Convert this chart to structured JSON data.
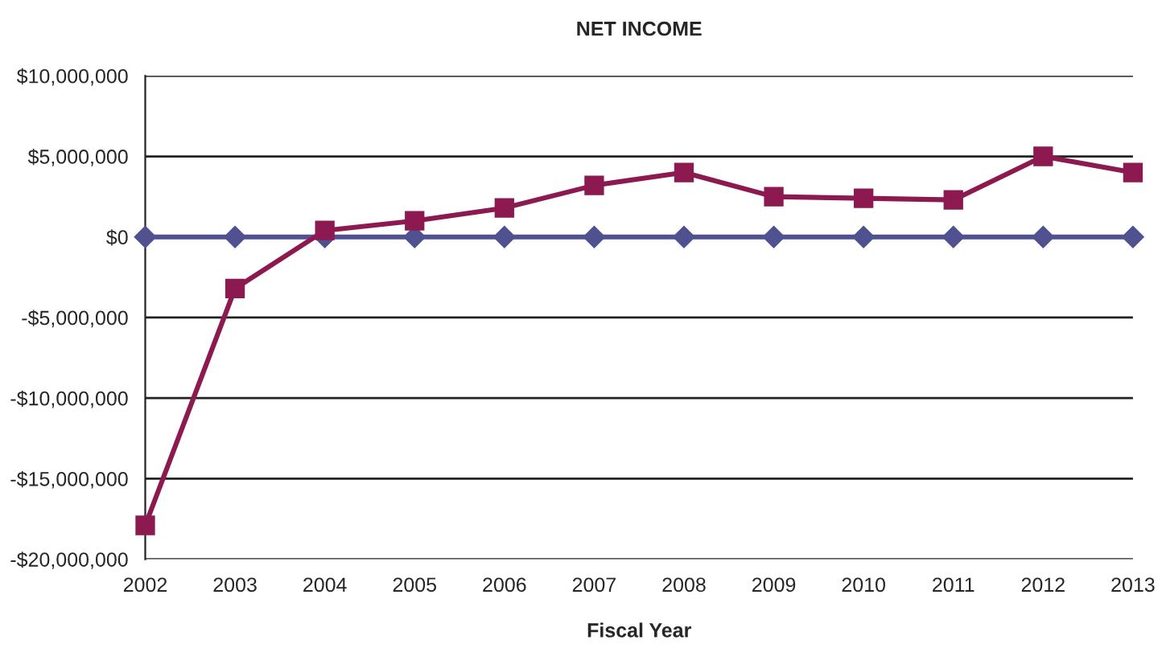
{
  "chart_data": {
    "type": "line",
    "title": "NET INCOME",
    "xlabel": "Fiscal Year",
    "categories": [
      "2002",
      "2003",
      "2004",
      "2005",
      "2006",
      "2007",
      "2008",
      "2009",
      "2010",
      "2011",
      "2012",
      "2013"
    ],
    "series": [
      {
        "color": "#4f5190",
        "marker": "diamond",
        "values": [
          0,
          0,
          0,
          0,
          0,
          0,
          0,
          0,
          0,
          0,
          0,
          0
        ]
      },
      {
        "color": "#8c1a50",
        "marker": "square",
        "values": [
          -17900000,
          -3200000,
          400000,
          1000000,
          1800000,
          3200000,
          4000000,
          2500000,
          2400000,
          2300000,
          5000000,
          4000000
        ]
      }
    ],
    "ylim": [
      -20000000,
      10000000
    ],
    "yticks": [
      {
        "value": -20000000,
        "label": "-$20,000,000"
      },
      {
        "value": -15000000,
        "label": "-$15,000,000"
      },
      {
        "value": -10000000,
        "label": "-$10,000,000"
      },
      {
        "value": -5000000,
        "label": "-$5,000,000"
      },
      {
        "value": 0,
        "label": "$0"
      },
      {
        "value": 5000000,
        "label": "$5,000,000"
      },
      {
        "value": 10000000,
        "label": "$10,000,000"
      }
    ],
    "grid": "y",
    "line_style": "solid"
  }
}
